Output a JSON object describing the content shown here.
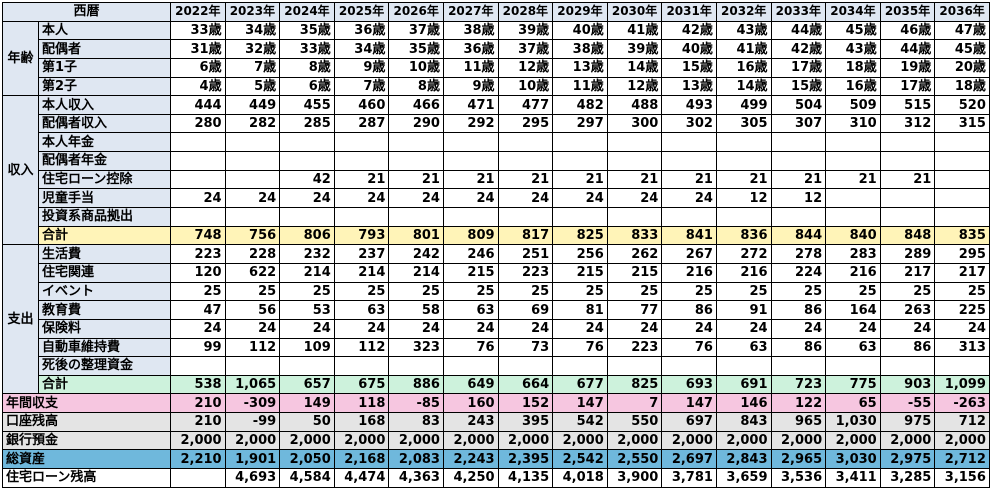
{
  "header_label": "西暦",
  "years": [
    "2022年",
    "2023年",
    "2024年",
    "2025年",
    "2026年",
    "2027年",
    "2028年",
    "2029年",
    "2030年",
    "2031年",
    "2032年",
    "2033年",
    "2034年",
    "2035年",
    "2036年"
  ],
  "groups": [
    {
      "name": "年齢",
      "color": "#dfe7f2",
      "rows": [
        {
          "label": "本人",
          "values": [
            "33歳",
            "34歳",
            "35歳",
            "36歳",
            "37歳",
            "38歳",
            "39歳",
            "40歳",
            "41歳",
            "42歳",
            "43歳",
            "44歳",
            "45歳",
            "46歳",
            "47歳"
          ]
        },
        {
          "label": "配偶者",
          "values": [
            "31歳",
            "32歳",
            "33歳",
            "34歳",
            "35歳",
            "36歳",
            "37歳",
            "38歳",
            "39歳",
            "40歳",
            "41歳",
            "42歳",
            "43歳",
            "44歳",
            "45歳"
          ]
        },
        {
          "label": "第1子",
          "values": [
            "6歳",
            "7歳",
            "8歳",
            "9歳",
            "10歳",
            "11歳",
            "12歳",
            "13歳",
            "14歳",
            "15歳",
            "16歳",
            "17歳",
            "18歳",
            "19歳",
            "20歳"
          ]
        },
        {
          "label": "第2子",
          "values": [
            "4歳",
            "5歳",
            "6歳",
            "7歳",
            "8歳",
            "9歳",
            "10歳",
            "11歳",
            "12歳",
            "13歳",
            "14歳",
            "15歳",
            "16歳",
            "17歳",
            "18歳"
          ]
        }
      ]
    },
    {
      "name": "収入",
      "color": "#dfe7f2",
      "rows": [
        {
          "label": "本人収入",
          "values": [
            "444",
            "449",
            "455",
            "460",
            "466",
            "471",
            "477",
            "482",
            "488",
            "493",
            "499",
            "504",
            "509",
            "515",
            "520"
          ]
        },
        {
          "label": "配偶者収入",
          "values": [
            "280",
            "282",
            "285",
            "287",
            "290",
            "292",
            "295",
            "297",
            "300",
            "302",
            "305",
            "307",
            "310",
            "312",
            "315"
          ]
        },
        {
          "label": "本人年金",
          "values": [
            "",
            "",
            "",
            "",
            "",
            "",
            "",
            "",
            "",
            "",
            "",
            "",
            "",
            "",
            ""
          ]
        },
        {
          "label": "配偶者年金",
          "values": [
            "",
            "",
            "",
            "",
            "",
            "",
            "",
            "",
            "",
            "",
            "",
            "",
            "",
            "",
            ""
          ]
        },
        {
          "label": "住宅ローン控除",
          "values": [
            "",
            "",
            "42",
            "21",
            "21",
            "21",
            "21",
            "21",
            "21",
            "21",
            "21",
            "21",
            "21",
            "21",
            ""
          ]
        },
        {
          "label": "児童手当",
          "values": [
            "24",
            "24",
            "24",
            "24",
            "24",
            "24",
            "24",
            "24",
            "24",
            "24",
            "12",
            "12",
            "",
            "",
            ""
          ]
        },
        {
          "label": "投資系商品拠出",
          "values": [
            "",
            "",
            "",
            "",
            "",
            "",
            "",
            "",
            "",
            "",
            "",
            "",
            "",
            "",
            ""
          ]
        },
        {
          "label": "合計",
          "total": true,
          "values": [
            "748",
            "756",
            "806",
            "793",
            "801",
            "809",
            "817",
            "825",
            "833",
            "841",
            "836",
            "844",
            "840",
            "848",
            "835"
          ]
        }
      ]
    },
    {
      "name": "支出",
      "color": "#dfe7f2",
      "rows": [
        {
          "label": "生活費",
          "values": [
            "223",
            "228",
            "232",
            "237",
            "242",
            "246",
            "251",
            "256",
            "262",
            "267",
            "272",
            "278",
            "283",
            "289",
            "295"
          ]
        },
        {
          "label": "住宅関連",
          "values": [
            "120",
            "622",
            "214",
            "214",
            "214",
            "215",
            "223",
            "215",
            "215",
            "216",
            "216",
            "224",
            "216",
            "217",
            "217"
          ]
        },
        {
          "label": "イベント",
          "values": [
            "25",
            "25",
            "25",
            "25",
            "25",
            "25",
            "25",
            "25",
            "25",
            "25",
            "25",
            "25",
            "25",
            "25",
            "25"
          ]
        },
        {
          "label": "教育費",
          "values": [
            "47",
            "56",
            "53",
            "63",
            "58",
            "63",
            "69",
            "81",
            "77",
            "86",
            "91",
            "86",
            "164",
            "263",
            "225"
          ]
        },
        {
          "label": "保険料",
          "values": [
            "24",
            "24",
            "24",
            "24",
            "24",
            "24",
            "24",
            "24",
            "24",
            "24",
            "24",
            "24",
            "24",
            "24",
            "24"
          ]
        },
        {
          "label": "自動車維持費",
          "values": [
            "99",
            "112",
            "109",
            "112",
            "323",
            "76",
            "73",
            "76",
            "223",
            "76",
            "63",
            "86",
            "63",
            "86",
            "313"
          ]
        },
        {
          "label": "死後の整理資金",
          "values": [
            "",
            "",
            "",
            "",
            "",
            "",
            "",
            "",
            "",
            "",
            "",
            "",
            "",
            "",
            ""
          ]
        },
        {
          "label": "合計",
          "total": true,
          "values": [
            "538",
            "1,065",
            "657",
            "675",
            "886",
            "649",
            "664",
            "677",
            "825",
            "693",
            "691",
            "723",
            "775",
            "903",
            "1,099"
          ]
        }
      ]
    }
  ],
  "summary_rows": [
    {
      "label": "年間収支",
      "color": "#f6c6e0",
      "values": [
        "210",
        "-309",
        "149",
        "118",
        "-85",
        "160",
        "152",
        "147",
        "7",
        "147",
        "146",
        "122",
        "65",
        "-55",
        "-263"
      ]
    },
    {
      "label": "口座残高",
      "color": "#e4e4e4",
      "values": [
        "210",
        "-99",
        "50",
        "168",
        "83",
        "243",
        "395",
        "542",
        "550",
        "697",
        "843",
        "965",
        "1,030",
        "975",
        "712"
      ]
    },
    {
      "label": "銀行預金",
      "color": "#e4e4e4",
      "values": [
        "2,000",
        "2,000",
        "2,000",
        "2,000",
        "2,000",
        "2,000",
        "2,000",
        "2,000",
        "2,000",
        "2,000",
        "2,000",
        "2,000",
        "2,000",
        "2,000",
        "2,000"
      ]
    },
    {
      "label": "総資産",
      "color": "#6fb8dc",
      "values": [
        "2,210",
        "1,901",
        "2,050",
        "2,168",
        "2,083",
        "2,243",
        "2,395",
        "2,542",
        "2,550",
        "2,697",
        "2,843",
        "2,965",
        "3,030",
        "2,975",
        "2,712"
      ]
    },
    {
      "label": "住宅ローン残高",
      "color": "#ffffff",
      "values": [
        "",
        "4,693",
        "4,584",
        "4,474",
        "4,363",
        "4,250",
        "4,135",
        "4,018",
        "3,900",
        "3,781",
        "3,659",
        "3,536",
        "3,411",
        "3,285",
        "3,156"
      ]
    }
  ],
  "colors": {
    "header_bg": "#dfe7f2",
    "income_total_bg": "#fff4b8",
    "expense_total_bg": "#cdf2dc",
    "summary_label_annual": "#f6c6e0",
    "summary_label_balance": "#e4e4e4",
    "summary_label_total_assets": "#6fb8dc"
  },
  "chart_data": {
    "type": "table",
    "columns": [
      "2022年",
      "2023年",
      "2024年",
      "2025年",
      "2026年",
      "2027年",
      "2028年",
      "2029年",
      "2030年",
      "2031年",
      "2032年",
      "2033年",
      "2034年",
      "2035年",
      "2036年"
    ],
    "row_groups": [
      "年齢",
      "収入",
      "支出"
    ],
    "summary": [
      "年間収支",
      "口座残高",
      "銀行預金",
      "総資産",
      "住宅ローン残高"
    ]
  }
}
